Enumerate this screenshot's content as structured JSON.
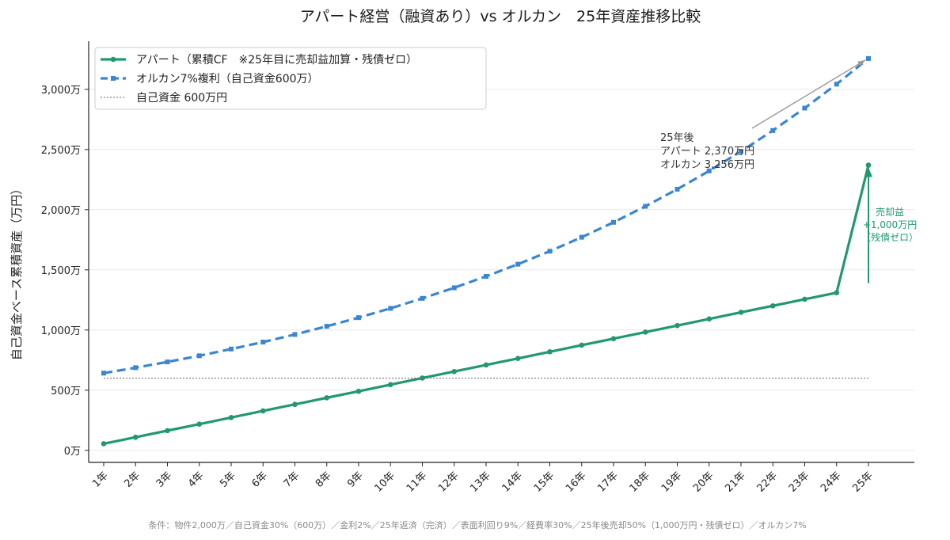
{
  "chart_data": {
    "type": "line",
    "title": "アパート経営（融資あり）vs オルカン　25年資産推移比較",
    "ylabel": "自己資金ベース累積資産（万円）",
    "xlabel": "",
    "categories": [
      "1年",
      "2年",
      "3年",
      "4年",
      "5年",
      "6年",
      "7年",
      "8年",
      "9年",
      "10年",
      "11年",
      "12年",
      "13年",
      "14年",
      "15年",
      "16年",
      "17年",
      "18年",
      "19年",
      "20年",
      "21年",
      "22年",
      "23年",
      "24年",
      "25年"
    ],
    "ylim": [
      -100,
      3400
    ],
    "yticks": [
      0,
      500,
      1000,
      1500,
      2000,
      2500,
      3000
    ],
    "ytick_labels": [
      "0万",
      "500万",
      "1,000万",
      "1,500万",
      "2,000万",
      "2,500万",
      "3,000万"
    ],
    "grid": "horizontal",
    "legend_position": "top-left",
    "series": [
      {
        "name": "アパート（累積CF　※25年目に売却益加算・残債ゼロ）",
        "color": "#21996c",
        "style": "solid",
        "marker": "circle",
        "values": [
          55,
          109,
          164,
          218,
          273,
          328,
          382,
          437,
          491,
          546,
          601,
          655,
          710,
          764,
          819,
          874,
          928,
          983,
          1037,
          1092,
          1147,
          1201,
          1256,
          1310,
          2370
        ]
      },
      {
        "name": "オルカン7%複利（自己資金600万）",
        "color": "#3b86d0",
        "style": "dashed",
        "marker": "square",
        "values": [
          642,
          687,
          735,
          786,
          842,
          900,
          963,
          1031,
          1103,
          1180,
          1263,
          1351,
          1446,
          1547,
          1655,
          1771,
          1895,
          2028,
          2170,
          2322,
          2484,
          2658,
          2844,
          3043,
          3256
        ]
      },
      {
        "name": "自己資金 600万円",
        "color": "#666666",
        "style": "dotted",
        "marker": "none",
        "values": [
          600,
          600,
          600,
          600,
          600,
          600,
          600,
          600,
          600,
          600,
          600,
          600,
          600,
          600,
          600,
          600,
          600,
          600,
          600,
          600,
          600,
          600,
          600,
          600,
          600
        ]
      }
    ],
    "annotations": {
      "summary_lines": [
        "25年後",
        "アパート 2,370万円",
        "オルカン 3,256万円"
      ],
      "sale_lines": [
        "売却益",
        "+1,000万円",
        "（残債ゼロ）"
      ]
    },
    "footnote": "条件：物件2,000万／自己資金30%（600万）／金利2%／25年返済（完済）／表面利回り9%／経費率30%／25年後売却50%（1,000万円・残債ゼロ）／オルカン7%"
  }
}
